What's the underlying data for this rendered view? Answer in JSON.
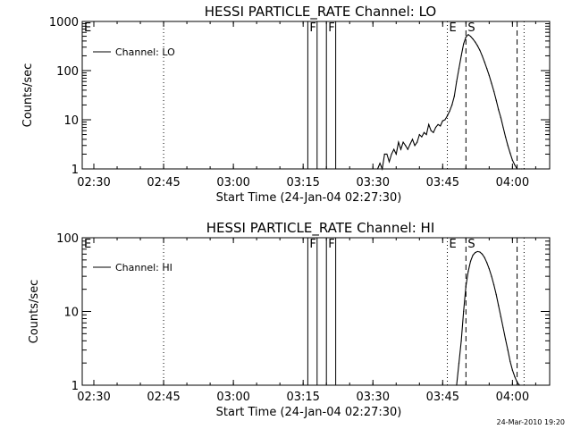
{
  "footer_timestamp": "24-Mar-2010 19:20",
  "chart_data": [
    {
      "type": "line",
      "title": "HESSI PARTICLE_RATE Channel: LO",
      "xlabel": "Start Time (24-Jan-04 02:27:30)",
      "ylabel": "Counts/sec",
      "y_scale": "log",
      "xlim": [
        "02:27:30",
        "04:08:00"
      ],
      "ylim": [
        1,
        1000
      ],
      "x_ticks": [
        "02:30",
        "02:45",
        "03:00",
        "03:15",
        "03:30",
        "03:45",
        "04:00"
      ],
      "y_ticks": [
        1,
        10,
        100,
        1000
      ],
      "y_tick_labels": [
        "1",
        "10",
        "100",
        "1000"
      ],
      "legend": {
        "label": "Channel: LO",
        "placement": "top-left"
      },
      "markers": [
        {
          "time": "02:27:30",
          "style": "dotted",
          "label": "E"
        },
        {
          "time": "02:45:00",
          "style": "dotted",
          "label": ""
        },
        {
          "time": "03:16:00",
          "style": "solid",
          "label": "F"
        },
        {
          "time": "03:18:00",
          "style": "solid",
          "label": ""
        },
        {
          "time": "03:20:00",
          "style": "solid",
          "label": "F"
        },
        {
          "time": "03:22:00",
          "style": "solid",
          "label": ""
        },
        {
          "time": "03:46:00",
          "style": "dotted",
          "label": "E"
        },
        {
          "time": "03:50:00",
          "style": "dashed",
          "label": "S"
        },
        {
          "time": "04:01:00",
          "style": "dashed",
          "label": ""
        },
        {
          "time": "04:02:30",
          "style": "dotted",
          "label": ""
        }
      ],
      "series": [
        {
          "x": [
            "03:31:00",
            "03:31:30",
            "03:32:00",
            "03:32:30",
            "03:33:00",
            "03:33:30",
            "03:34:00",
            "03:34:30",
            "03:35:00",
            "03:35:30",
            "03:36:00",
            "03:36:30",
            "03:37:00",
            "03:37:30",
            "03:38:00",
            "03:38:30",
            "03:39:00",
            "03:39:30",
            "03:40:00",
            "03:40:30",
            "03:41:00",
            "03:41:30",
            "03:42:00",
            "03:42:30",
            "03:43:00",
            "03:43:30",
            "03:44:00",
            "03:44:30",
            "03:45:00",
            "03:45:30",
            "03:46:00",
            "03:46:30",
            "03:47:00",
            "03:47:30",
            "03:48:00",
            "03:48:30",
            "03:49:00",
            "03:49:30",
            "03:50:00",
            "03:50:30",
            "03:51:00",
            "03:51:30",
            "03:52:00",
            "03:52:30",
            "03:53:00",
            "03:53:30",
            "03:54:00",
            "03:54:30",
            "03:55:00",
            "03:55:30",
            "03:56:00",
            "03:56:30",
            "03:57:00",
            "03:57:30",
            "03:58:00",
            "03:58:30",
            "03:59:00",
            "03:59:30",
            "04:00:00",
            "04:00:30",
            "04:01:00",
            "04:01:30",
            "04:02:00",
            "04:02:30"
          ],
          "values": [
            1.0,
            1.3,
            1.0,
            2.0,
            2.0,
            1.4,
            2.0,
            2.5,
            2.0,
            3.5,
            2.5,
            3.5,
            3.0,
            2.5,
            3.2,
            4.0,
            3.0,
            3.5,
            5.0,
            4.5,
            5.5,
            5.0,
            8.0,
            6.0,
            5.5,
            7.0,
            8.0,
            7.5,
            9.5,
            10.0,
            12.0,
            15.0,
            20.0,
            30.0,
            60.0,
            110.0,
            200.0,
            350.0,
            480.0,
            540.0,
            500.0,
            440.0,
            380.0,
            320.0,
            260.0,
            200.0,
            150.0,
            110.0,
            80.0,
            55.0,
            38.0,
            25.0,
            16.0,
            11.0,
            7.0,
            4.5,
            3.0,
            2.1,
            1.5,
            1.2,
            1.0,
            1.0,
            1.0,
            1.0
          ]
        }
      ]
    },
    {
      "type": "line",
      "title": "HESSI PARTICLE_RATE Channel: HI",
      "xlabel": "Start Time (24-Jan-04 02:27:30)",
      "ylabel": "Counts/sec",
      "y_scale": "log",
      "xlim": [
        "02:27:30",
        "04:08:00"
      ],
      "ylim": [
        1,
        100
      ],
      "x_ticks": [
        "02:30",
        "02:45",
        "03:00",
        "03:15",
        "03:30",
        "03:45",
        "04:00"
      ],
      "y_ticks": [
        1,
        10,
        100
      ],
      "y_tick_labels": [
        "1",
        "10",
        "100"
      ],
      "legend": {
        "label": "Channel: HI",
        "placement": "top-left"
      },
      "markers": [
        {
          "time": "02:27:30",
          "style": "dotted",
          "label": "E"
        },
        {
          "time": "02:45:00",
          "style": "dotted",
          "label": ""
        },
        {
          "time": "03:16:00",
          "style": "solid",
          "label": "F"
        },
        {
          "time": "03:18:00",
          "style": "solid",
          "label": ""
        },
        {
          "time": "03:20:00",
          "style": "solid",
          "label": "F"
        },
        {
          "time": "03:22:00",
          "style": "solid",
          "label": ""
        },
        {
          "time": "03:46:00",
          "style": "dotted",
          "label": "E"
        },
        {
          "time": "03:50:00",
          "style": "dashed",
          "label": "S"
        },
        {
          "time": "04:01:00",
          "style": "dashed",
          "label": ""
        },
        {
          "time": "04:02:30",
          "style": "dotted",
          "label": ""
        }
      ],
      "series": [
        {
          "x": [
            "03:48:00",
            "03:48:30",
            "03:49:00",
            "03:49:30",
            "03:50:00",
            "03:50:30",
            "03:51:00",
            "03:51:30",
            "03:52:00",
            "03:52:30",
            "03:53:00",
            "03:53:30",
            "03:54:00",
            "03:54:30",
            "03:55:00",
            "03:55:30",
            "03:56:00",
            "03:56:30",
            "03:57:00",
            "03:57:30",
            "03:58:00",
            "03:58:30",
            "03:59:00",
            "03:59:30",
            "04:00:00",
            "04:00:30",
            "04:01:00",
            "04:01:30"
          ],
          "values": [
            1.0,
            2.0,
            4.0,
            10.0,
            22.0,
            35.0,
            48.0,
            58.0,
            63.0,
            65.0,
            64.0,
            60.0,
            54.0,
            46.0,
            38.0,
            30.0,
            23.0,
            17.0,
            12.0,
            8.5,
            6.0,
            4.2,
            3.0,
            2.1,
            1.6,
            1.3,
            1.1,
            1.0
          ]
        }
      ]
    }
  ]
}
